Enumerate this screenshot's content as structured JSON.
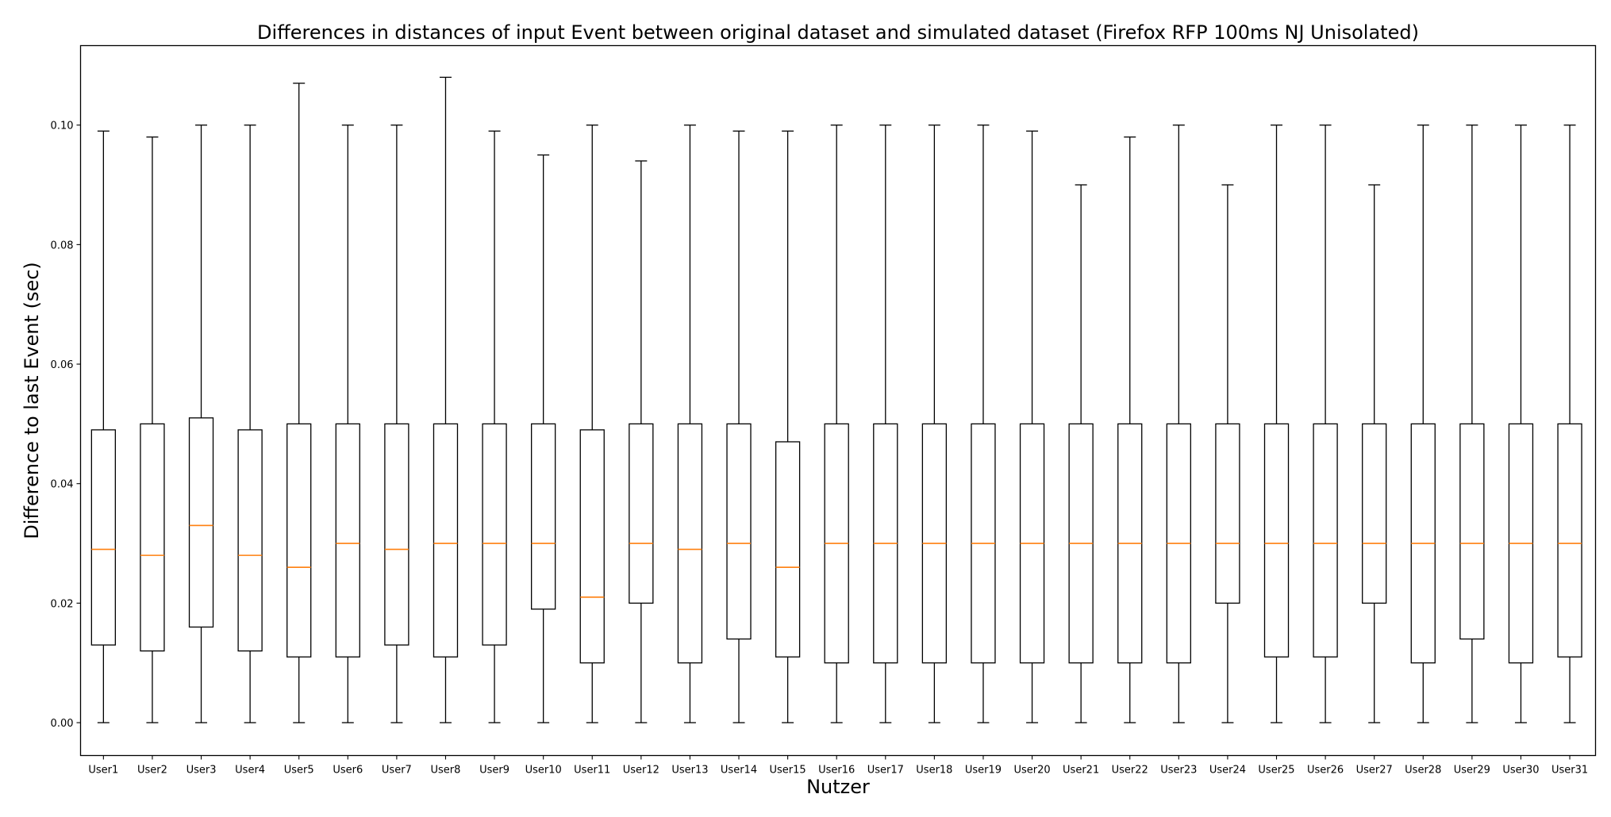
{
  "chart_data": {
    "type": "boxplot",
    "title": "Differences in distances of input Event between original dataset and simulated dataset (Firefox RFP 100ms NJ Unisolated)",
    "xlabel": "Nutzer",
    "ylabel": "Difference to last Event (sec)",
    "ylim": [
      -0.0055,
      0.1133
    ],
    "yticks": [
      0.0,
      0.02,
      0.04,
      0.06,
      0.08,
      0.1
    ],
    "ytick_labels": [
      "0.00",
      "0.02",
      "0.04",
      "0.06",
      "0.08",
      "0.10"
    ],
    "grid": false,
    "colors": {
      "box": "#000000",
      "median": "#ff7f0e",
      "background": "#ffffff"
    },
    "categories": [
      "User1",
      "User2",
      "User3",
      "User4",
      "User5",
      "User6",
      "User7",
      "User8",
      "User9",
      "User10",
      "User11",
      "User12",
      "User13",
      "User14",
      "User15",
      "User16",
      "User17",
      "User18",
      "User19",
      "User20",
      "User21",
      "User22",
      "User23",
      "User24",
      "User25",
      "User26",
      "User27",
      "User28",
      "User29",
      "User30",
      "User31"
    ],
    "boxes": [
      {
        "min": 0.0,
        "q1": 0.013,
        "median": 0.029,
        "q3": 0.049,
        "max": 0.099
      },
      {
        "min": 0.0,
        "q1": 0.012,
        "median": 0.028,
        "q3": 0.05,
        "max": 0.098
      },
      {
        "min": 0.0,
        "q1": 0.016,
        "median": 0.033,
        "q3": 0.051,
        "max": 0.1
      },
      {
        "min": 0.0,
        "q1": 0.012,
        "median": 0.028,
        "q3": 0.049,
        "max": 0.1
      },
      {
        "min": 0.0,
        "q1": 0.011,
        "median": 0.026,
        "q3": 0.05,
        "max": 0.107
      },
      {
        "min": 0.0,
        "q1": 0.011,
        "median": 0.03,
        "q3": 0.05,
        "max": 0.1
      },
      {
        "min": 0.0,
        "q1": 0.013,
        "median": 0.029,
        "q3": 0.05,
        "max": 0.1
      },
      {
        "min": 0.0,
        "q1": 0.011,
        "median": 0.03,
        "q3": 0.05,
        "max": 0.108
      },
      {
        "min": 0.0,
        "q1": 0.013,
        "median": 0.03,
        "q3": 0.05,
        "max": 0.099
      },
      {
        "min": 0.0,
        "q1": 0.019,
        "median": 0.03,
        "q3": 0.05,
        "max": 0.095
      },
      {
        "min": 0.0,
        "q1": 0.01,
        "median": 0.021,
        "q3": 0.049,
        "max": 0.1
      },
      {
        "min": 0.0,
        "q1": 0.02,
        "median": 0.03,
        "q3": 0.05,
        "max": 0.094
      },
      {
        "min": 0.0,
        "q1": 0.01,
        "median": 0.029,
        "q3": 0.05,
        "max": 0.1
      },
      {
        "min": 0.0,
        "q1": 0.014,
        "median": 0.03,
        "q3": 0.05,
        "max": 0.099
      },
      {
        "min": 0.0,
        "q1": 0.011,
        "median": 0.026,
        "q3": 0.047,
        "max": 0.099
      },
      {
        "min": 0.0,
        "q1": 0.01,
        "median": 0.03,
        "q3": 0.05,
        "max": 0.1
      },
      {
        "min": 0.0,
        "q1": 0.01,
        "median": 0.03,
        "q3": 0.05,
        "max": 0.1
      },
      {
        "min": 0.0,
        "q1": 0.01,
        "median": 0.03,
        "q3": 0.05,
        "max": 0.1
      },
      {
        "min": 0.0,
        "q1": 0.01,
        "median": 0.03,
        "q3": 0.05,
        "max": 0.1
      },
      {
        "min": 0.0,
        "q1": 0.01,
        "median": 0.03,
        "q3": 0.05,
        "max": 0.099
      },
      {
        "min": 0.0,
        "q1": 0.01,
        "median": 0.03,
        "q3": 0.05,
        "max": 0.09
      },
      {
        "min": 0.0,
        "q1": 0.01,
        "median": 0.03,
        "q3": 0.05,
        "max": 0.098
      },
      {
        "min": 0.0,
        "q1": 0.01,
        "median": 0.03,
        "q3": 0.05,
        "max": 0.1
      },
      {
        "min": 0.0,
        "q1": 0.02,
        "median": 0.03,
        "q3": 0.05,
        "max": 0.09
      },
      {
        "min": 0.0,
        "q1": 0.011,
        "median": 0.03,
        "q3": 0.05,
        "max": 0.1
      },
      {
        "min": 0.0,
        "q1": 0.011,
        "median": 0.03,
        "q3": 0.05,
        "max": 0.1
      },
      {
        "min": 0.0,
        "q1": 0.02,
        "median": 0.03,
        "q3": 0.05,
        "max": 0.09
      },
      {
        "min": 0.0,
        "q1": 0.01,
        "median": 0.03,
        "q3": 0.05,
        "max": 0.1
      },
      {
        "min": 0.0,
        "q1": 0.014,
        "median": 0.03,
        "q3": 0.05,
        "max": 0.1
      },
      {
        "min": 0.0,
        "q1": 0.01,
        "median": 0.03,
        "q3": 0.05,
        "max": 0.1
      },
      {
        "min": 0.0,
        "q1": 0.011,
        "median": 0.03,
        "q3": 0.05,
        "max": 0.1
      }
    ]
  }
}
